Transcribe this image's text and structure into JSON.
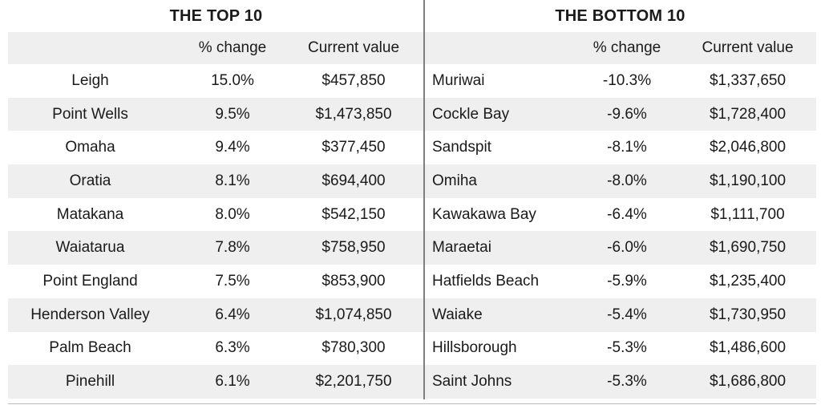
{
  "colors": {
    "row_alt": "#efefef",
    "divider": "#7f7f7f",
    "bottom_line": "#bbbbbb",
    "text": "#1a1a1a"
  },
  "tables": [
    {
      "title": "THE TOP 10",
      "columns": [
        "",
        "% change",
        "Current value"
      ],
      "rows": [
        [
          "Leigh",
          "15.0%",
          "$457,850"
        ],
        [
          "Point Wells",
          "9.5%",
          "$1,473,850"
        ],
        [
          "Omaha",
          "9.4%",
          "$377,450"
        ],
        [
          "Oratia",
          "8.1%",
          "$694,400"
        ],
        [
          "Matakana",
          "8.0%",
          "$542,150"
        ],
        [
          "Waiatarua",
          "7.8%",
          "$758,950"
        ],
        [
          "Point England",
          "7.5%",
          "$853,900"
        ],
        [
          "Henderson Valley",
          "6.4%",
          "$1,074,850"
        ],
        [
          "Palm Beach",
          "6.3%",
          "$780,300"
        ],
        [
          "Pinehill",
          "6.1%",
          "$2,201,750"
        ]
      ]
    },
    {
      "title": "THE BOTTOM 10",
      "columns": [
        "",
        "% change",
        "Current value"
      ],
      "rows": [
        [
          "Muriwai",
          "-10.3%",
          "$1,337,650"
        ],
        [
          "Cockle Bay",
          "-9.6%",
          "$1,728,400"
        ],
        [
          "Sandspit",
          "-8.1%",
          "$2,046,800"
        ],
        [
          "Omiha",
          "-8.0%",
          "$1,190,100"
        ],
        [
          "Kawakawa Bay",
          "-6.4%",
          "$1,111,700"
        ],
        [
          "Maraetai",
          "-6.0%",
          "$1,690,750"
        ],
        [
          "Hatfields Beach",
          "-5.9%",
          "$1,235,400"
        ],
        [
          "Waiake",
          "-5.4%",
          "$1,730,950"
        ],
        [
          "Hillsborough",
          "-5.3%",
          "$1,486,600"
        ],
        [
          "Saint Johns",
          "-5.3%",
          "$1,686,800"
        ]
      ]
    }
  ]
}
